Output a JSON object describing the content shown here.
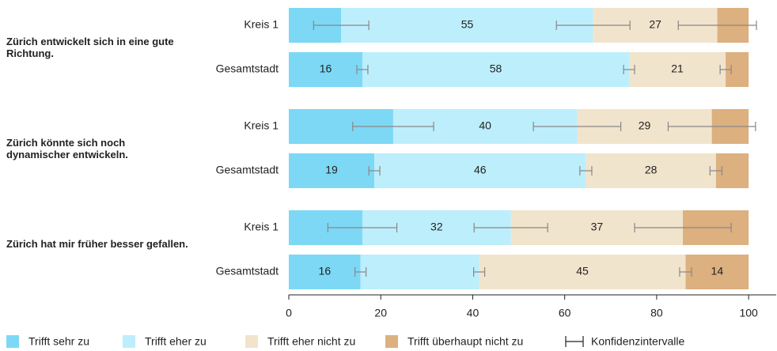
{
  "chart_data": {
    "type": "stacked-barh",
    "groups": [
      "Zürich entwickelt sich in eine gute Richtung.",
      "Zürich könnte sich noch dynamischer entwickeln.",
      "Zürich hat mir früher besser gefallen."
    ],
    "categories": [
      "Kreis 1",
      "Gesamtstadt",
      "Kreis 1",
      "Gesamtstadt",
      "Kreis 1",
      "Gesamtstadt"
    ],
    "series": [
      {
        "name": "Trifft sehr zu",
        "color": "#7dd8f5",
        "values": [
          11.4,
          16,
          22.7,
          18.6,
          16,
          15.6
        ],
        "value_labels": [
          null,
          "16",
          null,
          "19",
          null,
          "16"
        ],
        "errors": [
          6,
          1.2,
          8.8,
          1.2,
          7.5,
          1.2
        ]
      },
      {
        "name": "Trifft eher zu",
        "color": "#bdeefc",
        "values": [
          54.8,
          58,
          40,
          46,
          32.3,
          25.8
        ],
        "value_labels": [
          "55",
          "58",
          "40",
          "46",
          "32",
          null
        ],
        "errors": [
          8,
          1.2,
          9.5,
          1.3,
          8,
          1.2
        ]
      },
      {
        "name": "Trifft eher nicht zu",
        "color": "#f1e4cc",
        "values": [
          27,
          21,
          29.3,
          28.3,
          37.4,
          44.9
        ],
        "value_labels": [
          "27",
          "21",
          "29",
          "28",
          "37",
          "45"
        ],
        "errors": [
          8.5,
          1.2,
          9.5,
          1.3,
          10.5,
          1.3
        ]
      },
      {
        "name": "Trifft überhaupt nicht zu",
        "color": "#ddb07f",
        "values": [
          6.8,
          5,
          8,
          7.1,
          14.3,
          13.7
        ],
        "value_labels": [
          null,
          null,
          null,
          null,
          null,
          "14"
        ]
      }
    ],
    "ci_label": "Konfidenzintervalle",
    "xlim": [
      0,
      106
    ],
    "xticks": [
      0,
      20,
      40,
      60,
      80,
      100
    ]
  }
}
